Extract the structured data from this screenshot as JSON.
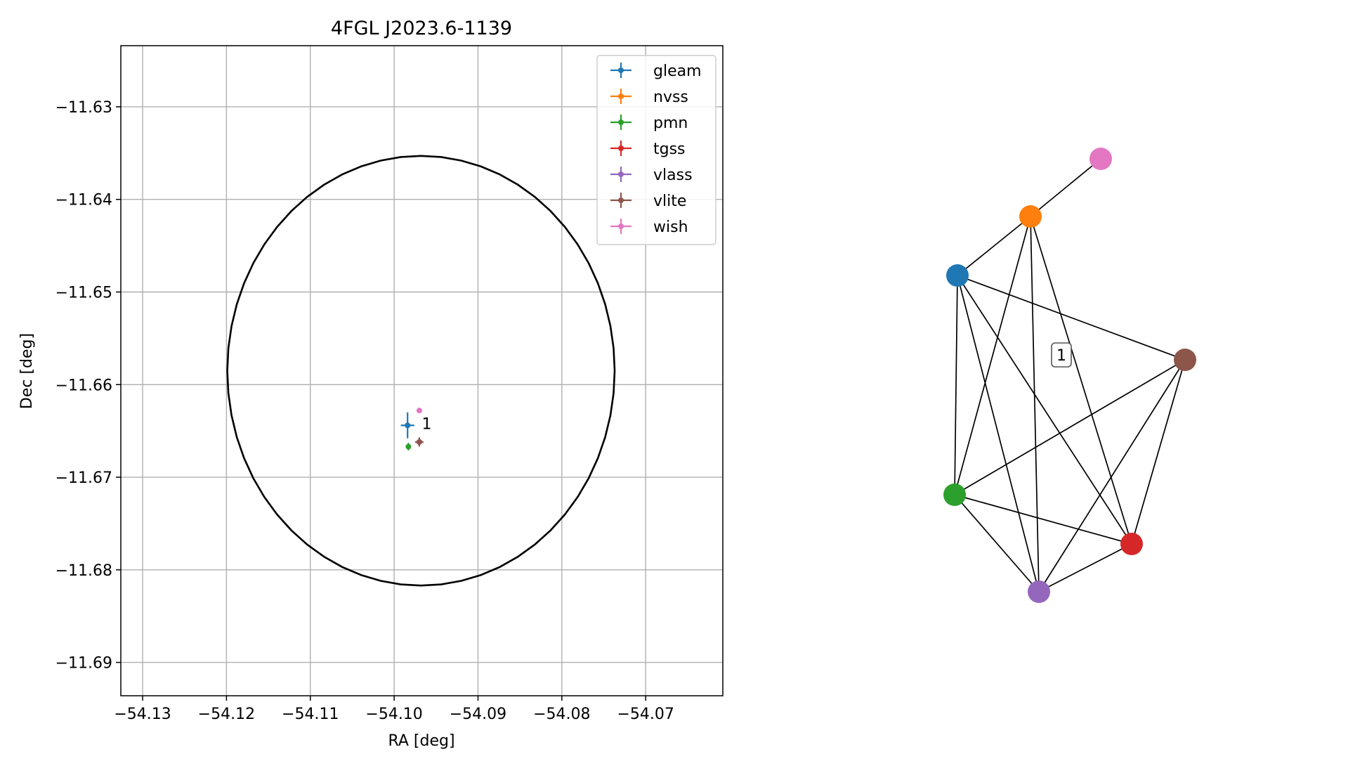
{
  "chart_data": [
    {
      "type": "scatter",
      "title": "4FGL J2023.6-1139",
      "xlabel": "RA [deg]",
      "ylabel": "Dec [deg]",
      "xlim": [
        -54.1326,
        -54.0608
      ],
      "ylim": [
        -11.6936,
        -11.6234
      ],
      "xticks": [
        -54.13,
        -54.12,
        -54.11,
        -54.1,
        -54.09,
        -54.08,
        -54.07
      ],
      "xtick_labels": [
        "−54.13",
        "−54.12",
        "−54.11",
        "−54.10",
        "−54.09",
        "−54.08",
        "−54.07"
      ],
      "yticks": [
        -11.63,
        -11.64,
        -11.65,
        -11.66,
        -11.67,
        -11.68,
        -11.69
      ],
      "ytick_labels": [
        "−11.63",
        "−11.64",
        "−11.65",
        "−11.66",
        "−11.67",
        "−11.68",
        "−11.69"
      ],
      "grid": true,
      "legend_position": "top-right",
      "ellipse": {
        "center_ra": -54.0968,
        "center_dec": -11.6585,
        "semi_ra": 0.0231,
        "semi_dec": 0.0232,
        "color": "#000000"
      },
      "series": [
        {
          "name": "gleam",
          "color": "#1f77b4",
          "ra": -54.0984,
          "dec": -11.6644,
          "err_ra": 0.0008,
          "err_dec": 0.0014
        },
        {
          "name": "nvss",
          "color": "#ff7f0e",
          "ra": -54.097,
          "dec": -11.6662,
          "err_ra": 0.0003,
          "err_dec": 0.0003
        },
        {
          "name": "pmn",
          "color": "#2ca02c",
          "ra": -54.0983,
          "dec": -11.6667,
          "err_ra": 0.0003,
          "err_dec": 0.0004
        },
        {
          "name": "tgss",
          "color": "#d62728",
          "ra": -54.097,
          "dec": -11.6662,
          "err_ra": 0.0003,
          "err_dec": 0.0004
        },
        {
          "name": "vlass",
          "color": "#9467bd",
          "ra": -54.097,
          "dec": -11.6662,
          "err_ra": 0.0001,
          "err_dec": 0.0001
        },
        {
          "name": "vlite",
          "color": "#8c564b",
          "ra": -54.097,
          "dec": -11.6662,
          "err_ra": 0.0005,
          "err_dec": 0.0005
        },
        {
          "name": "wish",
          "color": "#e377c2",
          "ra": -54.097,
          "dec": -11.6628,
          "err_ra": 0.0002,
          "err_dec": 0.0002
        }
      ],
      "annotations": [
        {
          "text": "1",
          "ra": -54.0967,
          "dec": -11.6642
        }
      ]
    },
    {
      "type": "network",
      "center_label": "1",
      "nodes": [
        {
          "id": "gleam",
          "color": "#1f77b4",
          "x": -0.74,
          "y": 0.55
        },
        {
          "id": "nvss",
          "color": "#ff7f0e",
          "x": -0.22,
          "y": 0.97
        },
        {
          "id": "pmn",
          "color": "#2ca02c",
          "x": -0.76,
          "y": -1.01
        },
        {
          "id": "tgss",
          "color": "#d62728",
          "x": 0.5,
          "y": -1.36
        },
        {
          "id": "vlass",
          "color": "#9467bd",
          "x": -0.16,
          "y": -1.7
        },
        {
          "id": "vlite",
          "color": "#8c564b",
          "x": 0.88,
          "y": -0.05
        },
        {
          "id": "wish",
          "color": "#e377c2",
          "x": 0.28,
          "y": 1.38
        }
      ],
      "edges": [
        [
          "wish",
          "nvss"
        ],
        [
          "nvss",
          "gleam"
        ],
        [
          "nvss",
          "pmn"
        ],
        [
          "nvss",
          "vlass"
        ],
        [
          "nvss",
          "tgss"
        ],
        [
          "gleam",
          "pmn"
        ],
        [
          "gleam",
          "vlass"
        ],
        [
          "gleam",
          "tgss"
        ],
        [
          "gleam",
          "vlite"
        ],
        [
          "pmn",
          "vlite"
        ],
        [
          "pmn",
          "tgss"
        ],
        [
          "pmn",
          "vlass"
        ],
        [
          "vlass",
          "tgss"
        ],
        [
          "vlass",
          "vlite"
        ],
        [
          "tgss",
          "vlite"
        ]
      ]
    }
  ]
}
